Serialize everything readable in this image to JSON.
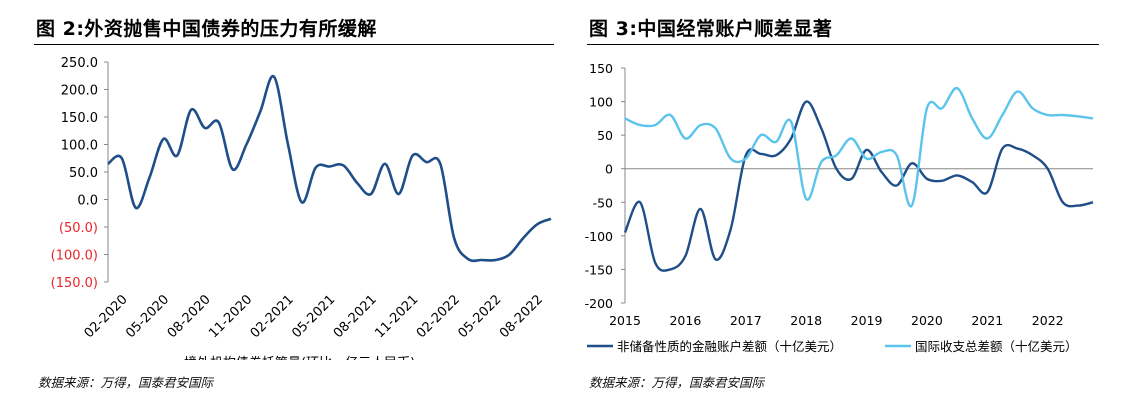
{
  "left_panel": {
    "title": "图 2:外资抛售中国债券的压力有所缓解",
    "source": "数据来源：万得，国泰君安国际"
  },
  "right_panel": {
    "title": "图 3:中国经常账户顺差显著",
    "source": "数据来源：万得，国泰君安国际"
  },
  "chart_data": [
    {
      "type": "line",
      "title": "图 2:外资抛售中国债券的压力有所缓解",
      "ylim": [
        -150,
        250
      ],
      "yticks": [
        250,
        200,
        150,
        100,
        50,
        0,
        -50,
        -100,
        -150
      ],
      "ytick_labels": [
        "250.0",
        "200.0",
        "150.0",
        "100.0",
        "50.0",
        "0.0",
        "(50.0)",
        "(100.0)",
        "(150.0)"
      ],
      "negative_tick_color": "#e8262a",
      "xticks": [
        "02-2020",
        "05-2020",
        "08-2020",
        "11-2020",
        "02-2021",
        "05-2021",
        "08-2021",
        "11-2021",
        "02-2022",
        "05-2022",
        "08-2022"
      ],
      "grid": false,
      "legend_position": "bottom-center",
      "series": [
        {
          "name": "境外机构债券托管量(环比，亿元人民币)",
          "color": "#1f4e89",
          "months": [
            "2020-01",
            "2020-02",
            "2020-03",
            "2020-04",
            "2020-05",
            "2020-06",
            "2020-07",
            "2020-08",
            "2020-09",
            "2020-10",
            "2020-11",
            "2020-12",
            "2021-01",
            "2021-02",
            "2021-03",
            "2021-04",
            "2021-05",
            "2021-06",
            "2021-07",
            "2021-08",
            "2021-09",
            "2021-10",
            "2021-11",
            "2021-12",
            "2022-01",
            "2022-02",
            "2022-03",
            "2022-04",
            "2022-05",
            "2022-06",
            "2022-07",
            "2022-08",
            "2022-09"
          ],
          "values": [
            65,
            75,
            -15,
            40,
            110,
            80,
            163,
            130,
            140,
            55,
            100,
            160,
            223,
            100,
            -5,
            58,
            60,
            62,
            30,
            10,
            65,
            10,
            80,
            68,
            65,
            -70,
            -108,
            -110,
            -110,
            -100,
            -70,
            -45,
            -35
          ]
        }
      ]
    },
    {
      "type": "line",
      "title": "图 3:中国经常账户顺差显著",
      "ylim": [
        -200,
        150
      ],
      "yticks": [
        150,
        100,
        50,
        0,
        -50,
        -100,
        -150,
        -200
      ],
      "xlim": [
        2015,
        2022.75
      ],
      "xticks": [
        "2015",
        "2016",
        "2017",
        "2018",
        "2019",
        "2020",
        "2021",
        "2022"
      ],
      "grid": false,
      "legend_position": "bottom",
      "series": [
        {
          "name": "非储备性质的金融账户差额（十亿美元）",
          "color": "#1f4e89",
          "x": [
            2015.0,
            2015.25,
            2015.5,
            2015.75,
            2016.0,
            2016.25,
            2016.5,
            2016.75,
            2017.0,
            2017.25,
            2017.5,
            2017.75,
            2018.0,
            2018.25,
            2018.5,
            2018.75,
            2019.0,
            2019.25,
            2019.5,
            2019.75,
            2020.0,
            2020.25,
            2020.5,
            2020.75,
            2021.0,
            2021.25,
            2021.5,
            2021.75,
            2022.0,
            2022.25,
            2022.5,
            2022.75
          ],
          "y": [
            -95,
            -50,
            -140,
            -150,
            -130,
            -60,
            -135,
            -90,
            20,
            22,
            20,
            45,
            100,
            60,
            0,
            -15,
            28,
            -5,
            -25,
            8,
            -15,
            -18,
            -10,
            -20,
            -35,
            30,
            30,
            20,
            0,
            -50,
            -55,
            -50
          ]
        },
        {
          "name": "国际收支总差额（十亿美元）",
          "color": "#5bc4ec",
          "x": [
            2015.0,
            2015.25,
            2015.5,
            2015.75,
            2016.0,
            2016.25,
            2016.5,
            2016.75,
            2017.0,
            2017.25,
            2017.5,
            2017.75,
            2018.0,
            2018.25,
            2018.5,
            2018.75,
            2019.0,
            2019.25,
            2019.5,
            2019.75,
            2020.0,
            2020.25,
            2020.5,
            2020.75,
            2021.0,
            2021.25,
            2021.5,
            2021.75,
            2022.0,
            2022.25,
            2022.5,
            2022.75
          ],
          "y": [
            75,
            65,
            65,
            80,
            45,
            65,
            60,
            15,
            15,
            50,
            40,
            70,
            -45,
            10,
            20,
            45,
            15,
            25,
            20,
            -55,
            90,
            90,
            120,
            75,
            45,
            80,
            115,
            90,
            80,
            80,
            78,
            75
          ]
        }
      ]
    }
  ]
}
